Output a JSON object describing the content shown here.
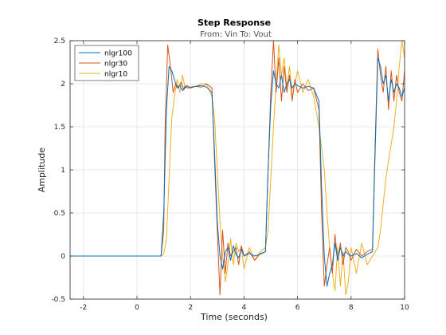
{
  "chart_data": {
    "type": "line",
    "title": "Step Response",
    "subtitle": "From: Vin  To: Vout",
    "xlabel": "Time (seconds)",
    "ylabel": "Amplitude",
    "xlim": [
      -2.5,
      10
    ],
    "ylim": [
      -0.5,
      2.5
    ],
    "xticks": [
      -2,
      0,
      2,
      4,
      6,
      8,
      10
    ],
    "xtick_labels": [
      "-2",
      "0",
      "2",
      "4",
      "6",
      "8",
      "10"
    ],
    "yticks": [
      -0.5,
      0,
      0.5,
      1,
      1.5,
      2,
      2.5
    ],
    "ytick_labels": [
      "-0.5",
      "0",
      "0.5",
      "1",
      "1.5",
      "2",
      "2.5"
    ],
    "grid": true,
    "legend_position": "top-left",
    "series": [
      {
        "name": "nlgr100",
        "color": "#0072BD",
        "x": [
          -2.5,
          0.8,
          0.9,
          1.0,
          1.1,
          1.2,
          1.3,
          1.4,
          1.5,
          1.6,
          1.7,
          1.8,
          1.9,
          2.0,
          2.2,
          2.4,
          2.6,
          2.8,
          2.9,
          3.0,
          3.1,
          3.2,
          3.3,
          3.4,
          3.5,
          3.6,
          3.7,
          3.8,
          3.9,
          4.0,
          4.2,
          4.4,
          4.6,
          4.8,
          4.9,
          5.0,
          5.1,
          5.2,
          5.3,
          5.4,
          5.5,
          5.6,
          5.7,
          5.8,
          5.9,
          6.0,
          6.2,
          6.4,
          6.6,
          6.8,
          6.9,
          7.0,
          7.1,
          7.2,
          7.3,
          7.4,
          7.5,
          7.6,
          7.7,
          7.8,
          7.9,
          8.0,
          8.2,
          8.4,
          8.6,
          8.8,
          8.9,
          9.0,
          9.1,
          9.2,
          9.3,
          9.4,
          9.5,
          9.6,
          9.7,
          9.8,
          9.9,
          10.0
        ],
        "y": [
          0,
          0,
          0,
          0.5,
          1.7,
          2.2,
          2.15,
          2.05,
          1.95,
          1.98,
          1.92,
          1.97,
          1.95,
          1.96,
          1.97,
          1.98,
          1.96,
          1.9,
          1.2,
          0.4,
          0.0,
          -0.15,
          0.05,
          0.1,
          -0.05,
          0.12,
          0.02,
          -0.02,
          0.08,
          0.0,
          0.03,
          0.0,
          0.02,
          0.05,
          1.0,
          1.75,
          2.15,
          2.0,
          1.95,
          2.1,
          1.9,
          2.0,
          2.05,
          1.95,
          2.0,
          1.98,
          1.95,
          1.97,
          1.95,
          1.8,
          0.8,
          0.0,
          -0.35,
          -0.2,
          -0.1,
          0.15,
          -0.05,
          0.1,
          0.0,
          0.05,
          0.02,
          0.0,
          0.03,
          -0.02,
          0.02,
          0.05,
          1.2,
          2.3,
          2.2,
          2.0,
          2.1,
          1.8,
          2.05,
          1.9,
          2.0,
          1.95,
          1.85,
          1.95
        ]
      },
      {
        "name": "nlgr30",
        "color": "#D95319",
        "x": [
          -2.5,
          0.8,
          0.9,
          1.0,
          1.05,
          1.15,
          1.25,
          1.35,
          1.45,
          1.55,
          1.65,
          1.75,
          1.85,
          2.0,
          2.2,
          2.4,
          2.6,
          2.8,
          2.9,
          3.0,
          3.1,
          3.2,
          3.3,
          3.4,
          3.5,
          3.6,
          3.7,
          3.8,
          3.9,
          4.0,
          4.2,
          4.4,
          4.6,
          4.8,
          4.9,
          5.0,
          5.1,
          5.2,
          5.3,
          5.4,
          5.5,
          5.6,
          5.7,
          5.8,
          5.9,
          6.0,
          6.2,
          6.4,
          6.6,
          6.8,
          6.9,
          7.0,
          7.1,
          7.2,
          7.3,
          7.4,
          7.5,
          7.6,
          7.7,
          7.8,
          7.9,
          8.0,
          8.2,
          8.4,
          8.6,
          8.8,
          8.9,
          9.0,
          9.1,
          9.2,
          9.3,
          9.4,
          9.5,
          9.6,
          9.7,
          9.8,
          9.9,
          10.0
        ],
        "y": [
          0,
          0,
          0,
          0.3,
          1.5,
          2.45,
          2.2,
          1.9,
          2.0,
          1.95,
          2.02,
          1.93,
          1.98,
          1.95,
          1.97,
          1.96,
          2.0,
          1.95,
          1.1,
          0.3,
          -0.45,
          0.3,
          -0.2,
          0.15,
          0.0,
          0.05,
          0.1,
          -0.1,
          0.12,
          0.0,
          0.05,
          -0.05,
          0.03,
          0.05,
          1.0,
          1.9,
          2.5,
          1.9,
          2.3,
          1.8,
          2.2,
          1.9,
          2.1,
          1.8,
          2.05,
          1.9,
          2.0,
          1.92,
          1.95,
          1.7,
          0.5,
          -0.35,
          -0.1,
          0.1,
          -0.2,
          0.25,
          -0.05,
          0.15,
          -0.1,
          0.1,
          0.05,
          -0.05,
          0.08,
          0.0,
          0.05,
          0.08,
          1.3,
          2.4,
          2.1,
          1.9,
          2.2,
          1.7,
          2.15,
          1.8,
          2.1,
          1.9,
          1.8,
          2.15
        ]
      },
      {
        "name": "nlgr10",
        "color": "#EDB120",
        "x": [
          -2.5,
          0.9,
          1.0,
          1.1,
          1.2,
          1.3,
          1.4,
          1.5,
          1.6,
          1.7,
          1.8,
          1.9,
          2.0,
          2.2,
          2.4,
          2.6,
          2.8,
          2.9,
          3.0,
          3.1,
          3.2,
          3.3,
          3.4,
          3.5,
          3.6,
          3.7,
          3.8,
          3.9,
          4.0,
          4.2,
          4.4,
          4.6,
          4.8,
          4.9,
          5.0,
          5.1,
          5.2,
          5.3,
          5.4,
          5.5,
          5.6,
          5.7,
          5.8,
          5.9,
          6.0,
          6.2,
          6.4,
          6.6,
          6.8,
          7.0,
          7.1,
          7.2,
          7.3,
          7.4,
          7.5,
          7.6,
          7.7,
          7.8,
          7.9,
          8.0,
          8.2,
          8.4,
          8.6,
          8.8,
          9.0,
          9.1,
          9.2,
          9.3,
          9.4,
          9.5,
          9.6,
          9.7,
          9.8,
          9.9,
          10.0
        ],
        "y": [
          0,
          0,
          0.02,
          0.2,
          0.9,
          1.6,
          1.85,
          2.05,
          1.9,
          2.1,
          1.95,
          1.98,
          1.95,
          1.97,
          2.0,
          2.0,
          1.85,
          1.6,
          1.0,
          0.4,
          0.0,
          -0.3,
          -0.1,
          0.2,
          -0.1,
          0.15,
          0.05,
          0.1,
          -0.15,
          0.1,
          -0.05,
          0.05,
          0.1,
          0.3,
          0.9,
          1.5,
          2.0,
          2.45,
          2.1,
          2.3,
          1.95,
          2.2,
          1.85,
          2.0,
          2.15,
          1.9,
          2.05,
          1.85,
          1.5,
          1.0,
          0.5,
          0.1,
          -0.2,
          -0.4,
          0.1,
          -0.35,
          0.05,
          -0.45,
          -0.3,
          0.1,
          -0.2,
          0.15,
          -0.1,
          0.0,
          0.1,
          0.3,
          0.6,
          0.9,
          1.1,
          1.3,
          1.5,
          1.8,
          2.2,
          2.5,
          2.3
        ]
      }
    ]
  }
}
